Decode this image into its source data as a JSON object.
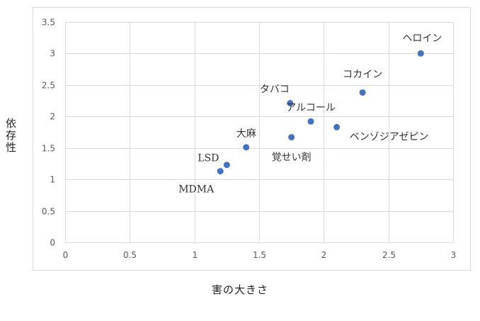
{
  "chart_data": {
    "type": "scatter",
    "title": "",
    "xlabel": "害の大きさ",
    "ylabel": "依存性",
    "xlim": [
      0,
      3
    ],
    "ylim": [
      0,
      3.5
    ],
    "x_ticks": [
      "0",
      "0.5",
      "1",
      "1.5",
      "2",
      "2.5",
      "3"
    ],
    "y_ticks": [
      "0",
      "0.5",
      "1",
      "1.5",
      "2",
      "2.5",
      "3",
      "3.5"
    ],
    "grid": true,
    "legend": "none",
    "marker_color": "#4472C4",
    "points": [
      {
        "label": "ヘロイン",
        "x": 2.75,
        "y": 3.0
      },
      {
        "label": "コカイン",
        "x": 2.3,
        "y": 2.38
      },
      {
        "label": "タバコ",
        "x": 1.74,
        "y": 2.21
      },
      {
        "label": "アルコール",
        "x": 1.9,
        "y": 1.92
      },
      {
        "label": "ベンゾジアゼピン",
        "x": 2.1,
        "y": 1.83
      },
      {
        "label": "大麻",
        "x": 1.4,
        "y": 1.51
      },
      {
        "label": "覚せい剤",
        "x": 1.75,
        "y": 1.67
      },
      {
        "label": "LSD",
        "x": 1.25,
        "y": 1.23
      },
      {
        "label": "MDMA",
        "x": 1.2,
        "y": 1.13
      }
    ]
  }
}
